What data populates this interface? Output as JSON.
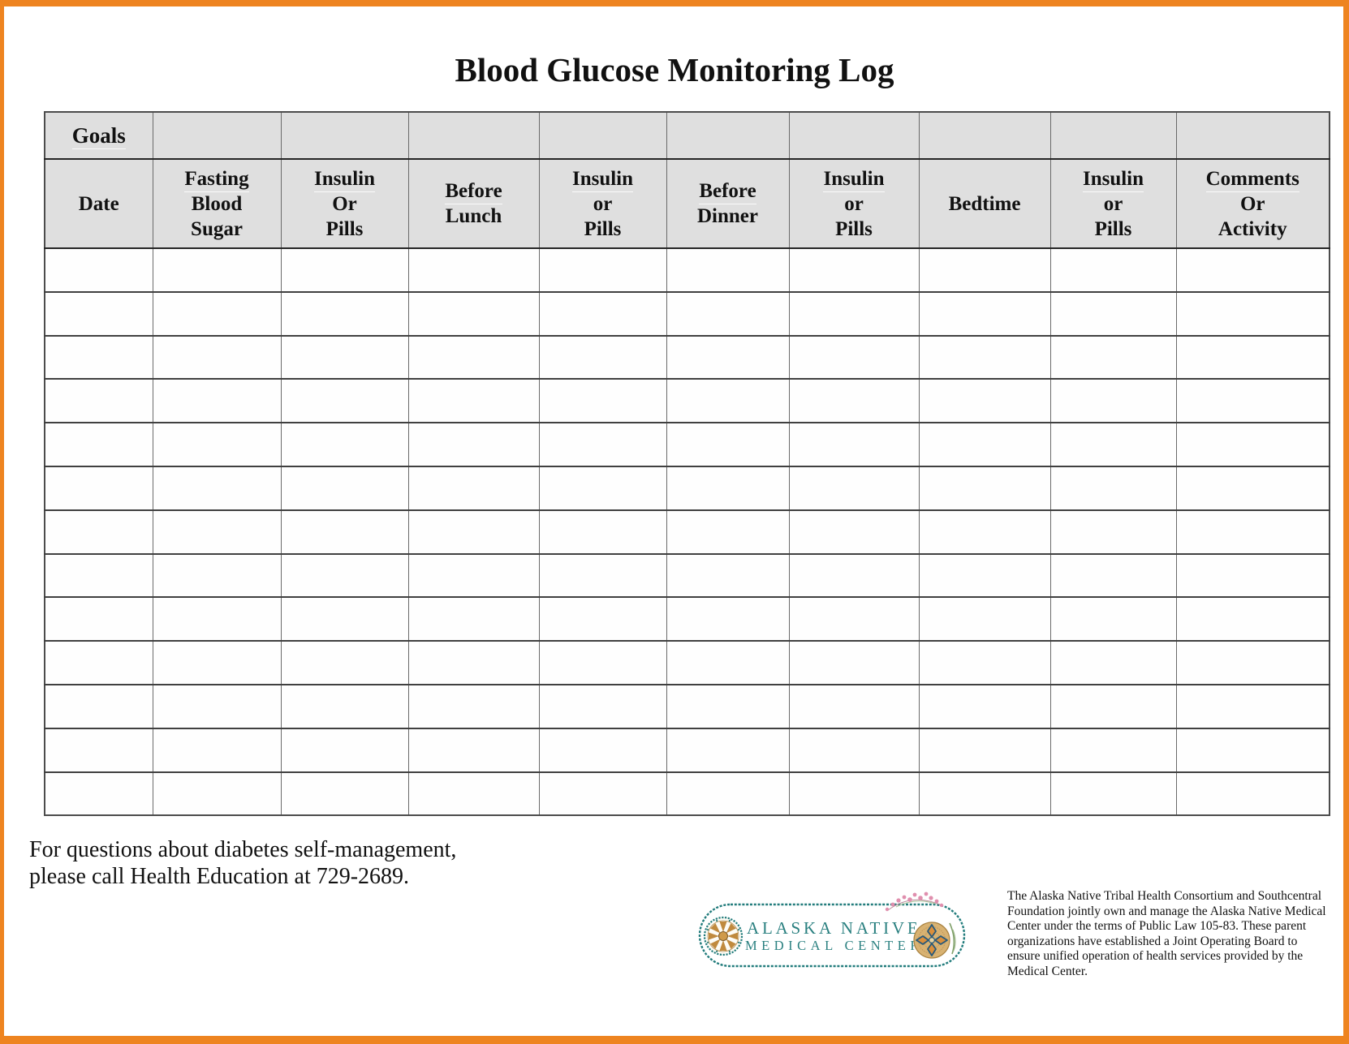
{
  "page": {
    "title": "Blood Glucose Monitoring Log",
    "frame_color": "#ee8420"
  },
  "table": {
    "goals_label": "Goals",
    "columns": [
      "Date",
      "Fasting\nBlood\nSugar",
      "Insulin\nOr\nPills",
      "Before\nLunch",
      "Insulin\nor\nPills",
      "Before\nDinner",
      "Insulin\nor\nPills",
      "Bedtime",
      "Insulin\nor\nPills",
      "Comments\nOr\nActivity"
    ],
    "empty_row_count": 13,
    "header_bg": "#dfdfdf"
  },
  "footer": {
    "contact_line1": "For questions about diabetes self-management,",
    "contact_line2": "please call Health Education at 729-2689.",
    "logo": {
      "line1": "ALASKA NATIVE",
      "line2": "MEDICAL CENTER",
      "teal": "#227c7c",
      "gold": "#c08a3e",
      "pink": "#e08fae"
    },
    "disclaimer": "The Alaska Native Tribal Health Consortium and Southcentral Foundation jointly own and manage the Alaska Native Medical Center under the terms of Public Law 105-83.  These parent organizations have established a Joint Operating Board to ensure unified operation of health services provided by the Medical Center."
  }
}
